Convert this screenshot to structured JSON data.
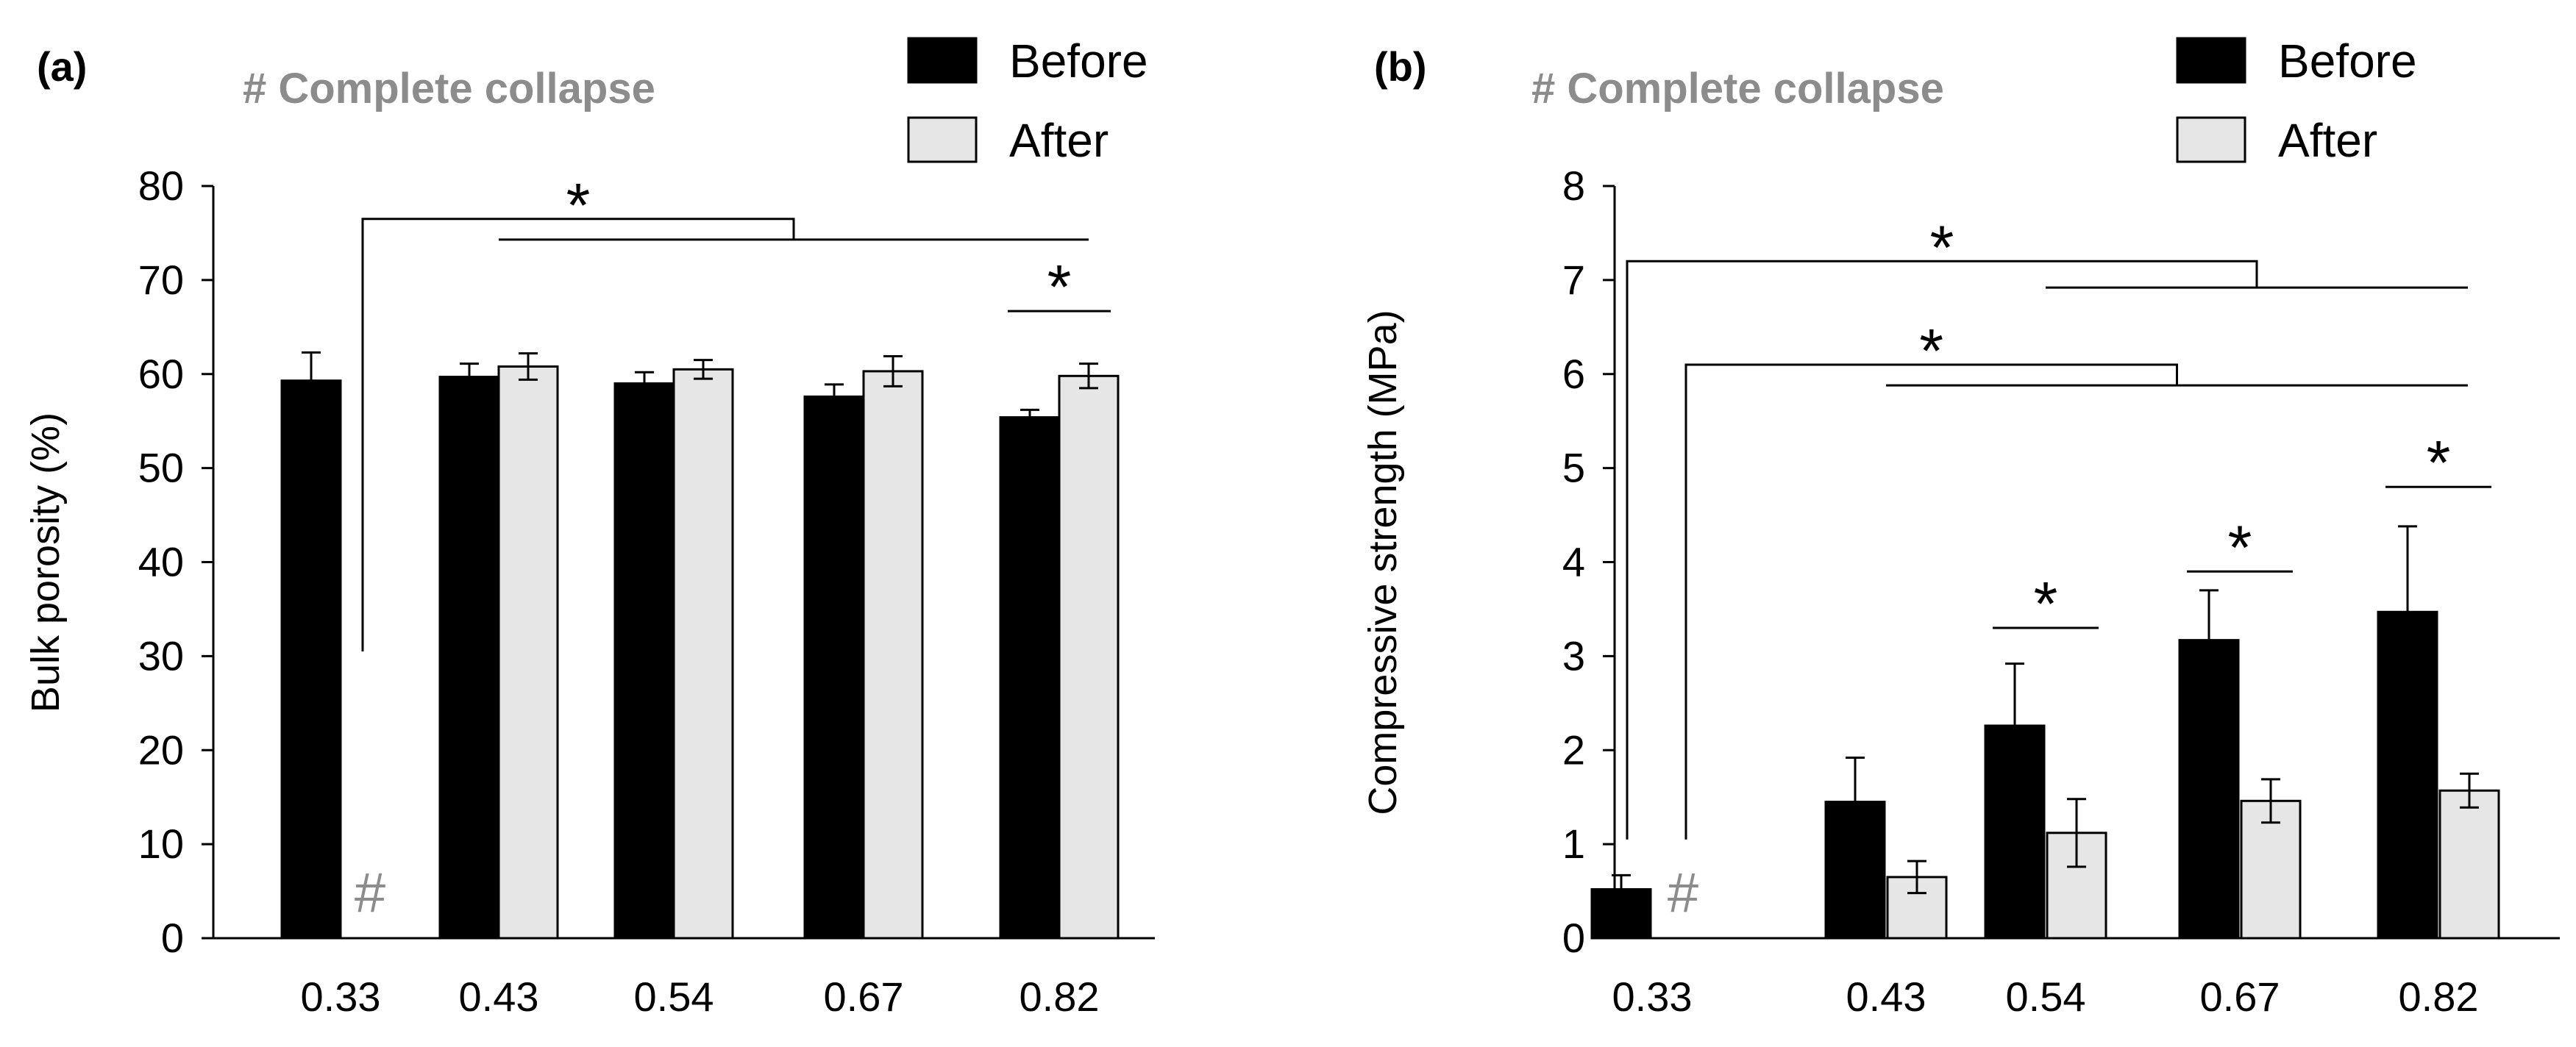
{
  "chart_data": [
    {
      "type": "bar",
      "panel_label": "(a)",
      "note": "# Complete collapse",
      "categories": [
        "0.33",
        "0.43",
        "0.54",
        "0.67",
        "0.82"
      ],
      "ylabel": "Bulk porosity (%)",
      "xlabel": "",
      "ylim": [
        0,
        80
      ],
      "yticks": [
        "0",
        "10",
        "20",
        "30",
        "40",
        "50",
        "60",
        "70",
        "80"
      ],
      "legend": [
        "Before",
        "After"
      ],
      "legend_position": "top-right",
      "grid": false,
      "colors": {
        "before": "#000000",
        "after": "#e6e6e6"
      },
      "series": [
        {
          "name": "Before",
          "values": [
            59.3,
            59.7,
            59.0,
            57.6,
            55.4
          ],
          "errors": [
            3.0,
            1.4,
            1.2,
            1.3,
            0.8
          ]
        },
        {
          "name": "After",
          "values": [
            null,
            60.8,
            60.5,
            60.3,
            59.8
          ],
          "errors": [
            null,
            1.4,
            1.0,
            1.6,
            1.3
          ]
        }
      ],
      "collapse_marker": {
        "text": "#",
        "category_index": 0
      },
      "significance": [
        {
          "label": "*",
          "type": "group",
          "left_category": 0,
          "from_category": 1,
          "to_category": 4,
          "y": 76.5,
          "left_drop_to": 30.5,
          "right_y": 74.3
        },
        {
          "label": "*",
          "type": "pair",
          "category": 4,
          "y": 66.7
        }
      ]
    },
    {
      "type": "bar",
      "panel_label": "(b)",
      "note": "# Complete collapse",
      "categories": [
        "0.33",
        "0.43",
        "0.54",
        "0.67",
        "0.82"
      ],
      "ylabel": "Compressive strength  (MPa)",
      "xlabel": "",
      "ylim": [
        0,
        8
      ],
      "yticks": [
        "0",
        "1",
        "2",
        "3",
        "4",
        "5",
        "6",
        "7",
        "8"
      ],
      "legend": [
        "Before",
        "After"
      ],
      "legend_position": "top-right",
      "grid": false,
      "colors": {
        "before": "#000000",
        "after": "#e6e6e6"
      },
      "series": [
        {
          "name": "Before",
          "values": [
            0.52,
            1.45,
            2.26,
            3.17,
            3.47
          ],
          "errors": [
            0.15,
            0.47,
            0.66,
            0.53,
            0.91
          ]
        },
        {
          "name": "After",
          "values": [
            null,
            0.65,
            1.12,
            1.46,
            1.57
          ],
          "errors": [
            null,
            0.17,
            0.36,
            0.23,
            0.18
          ]
        }
      ],
      "collapse_marker": {
        "text": "#",
        "category_index": 0
      },
      "significance": [
        {
          "label": "*",
          "type": "group",
          "left_series": "Before",
          "from_category": 2,
          "to_category": 4,
          "y": 7.2,
          "left_drop_to": 1.05,
          "right_y": 6.92
        },
        {
          "label": "*",
          "type": "group",
          "left_series": "After",
          "from_category": 1,
          "to_category": 4,
          "y": 6.1,
          "left_drop_to": 1.05,
          "right_y": 5.88
        },
        {
          "label": "*",
          "type": "pair",
          "category": 2,
          "y": 3.3
        },
        {
          "label": "*",
          "type": "pair",
          "category": 3,
          "y": 3.9
        },
        {
          "label": "*",
          "type": "pair",
          "category": 4,
          "y": 4.8
        }
      ]
    }
  ]
}
